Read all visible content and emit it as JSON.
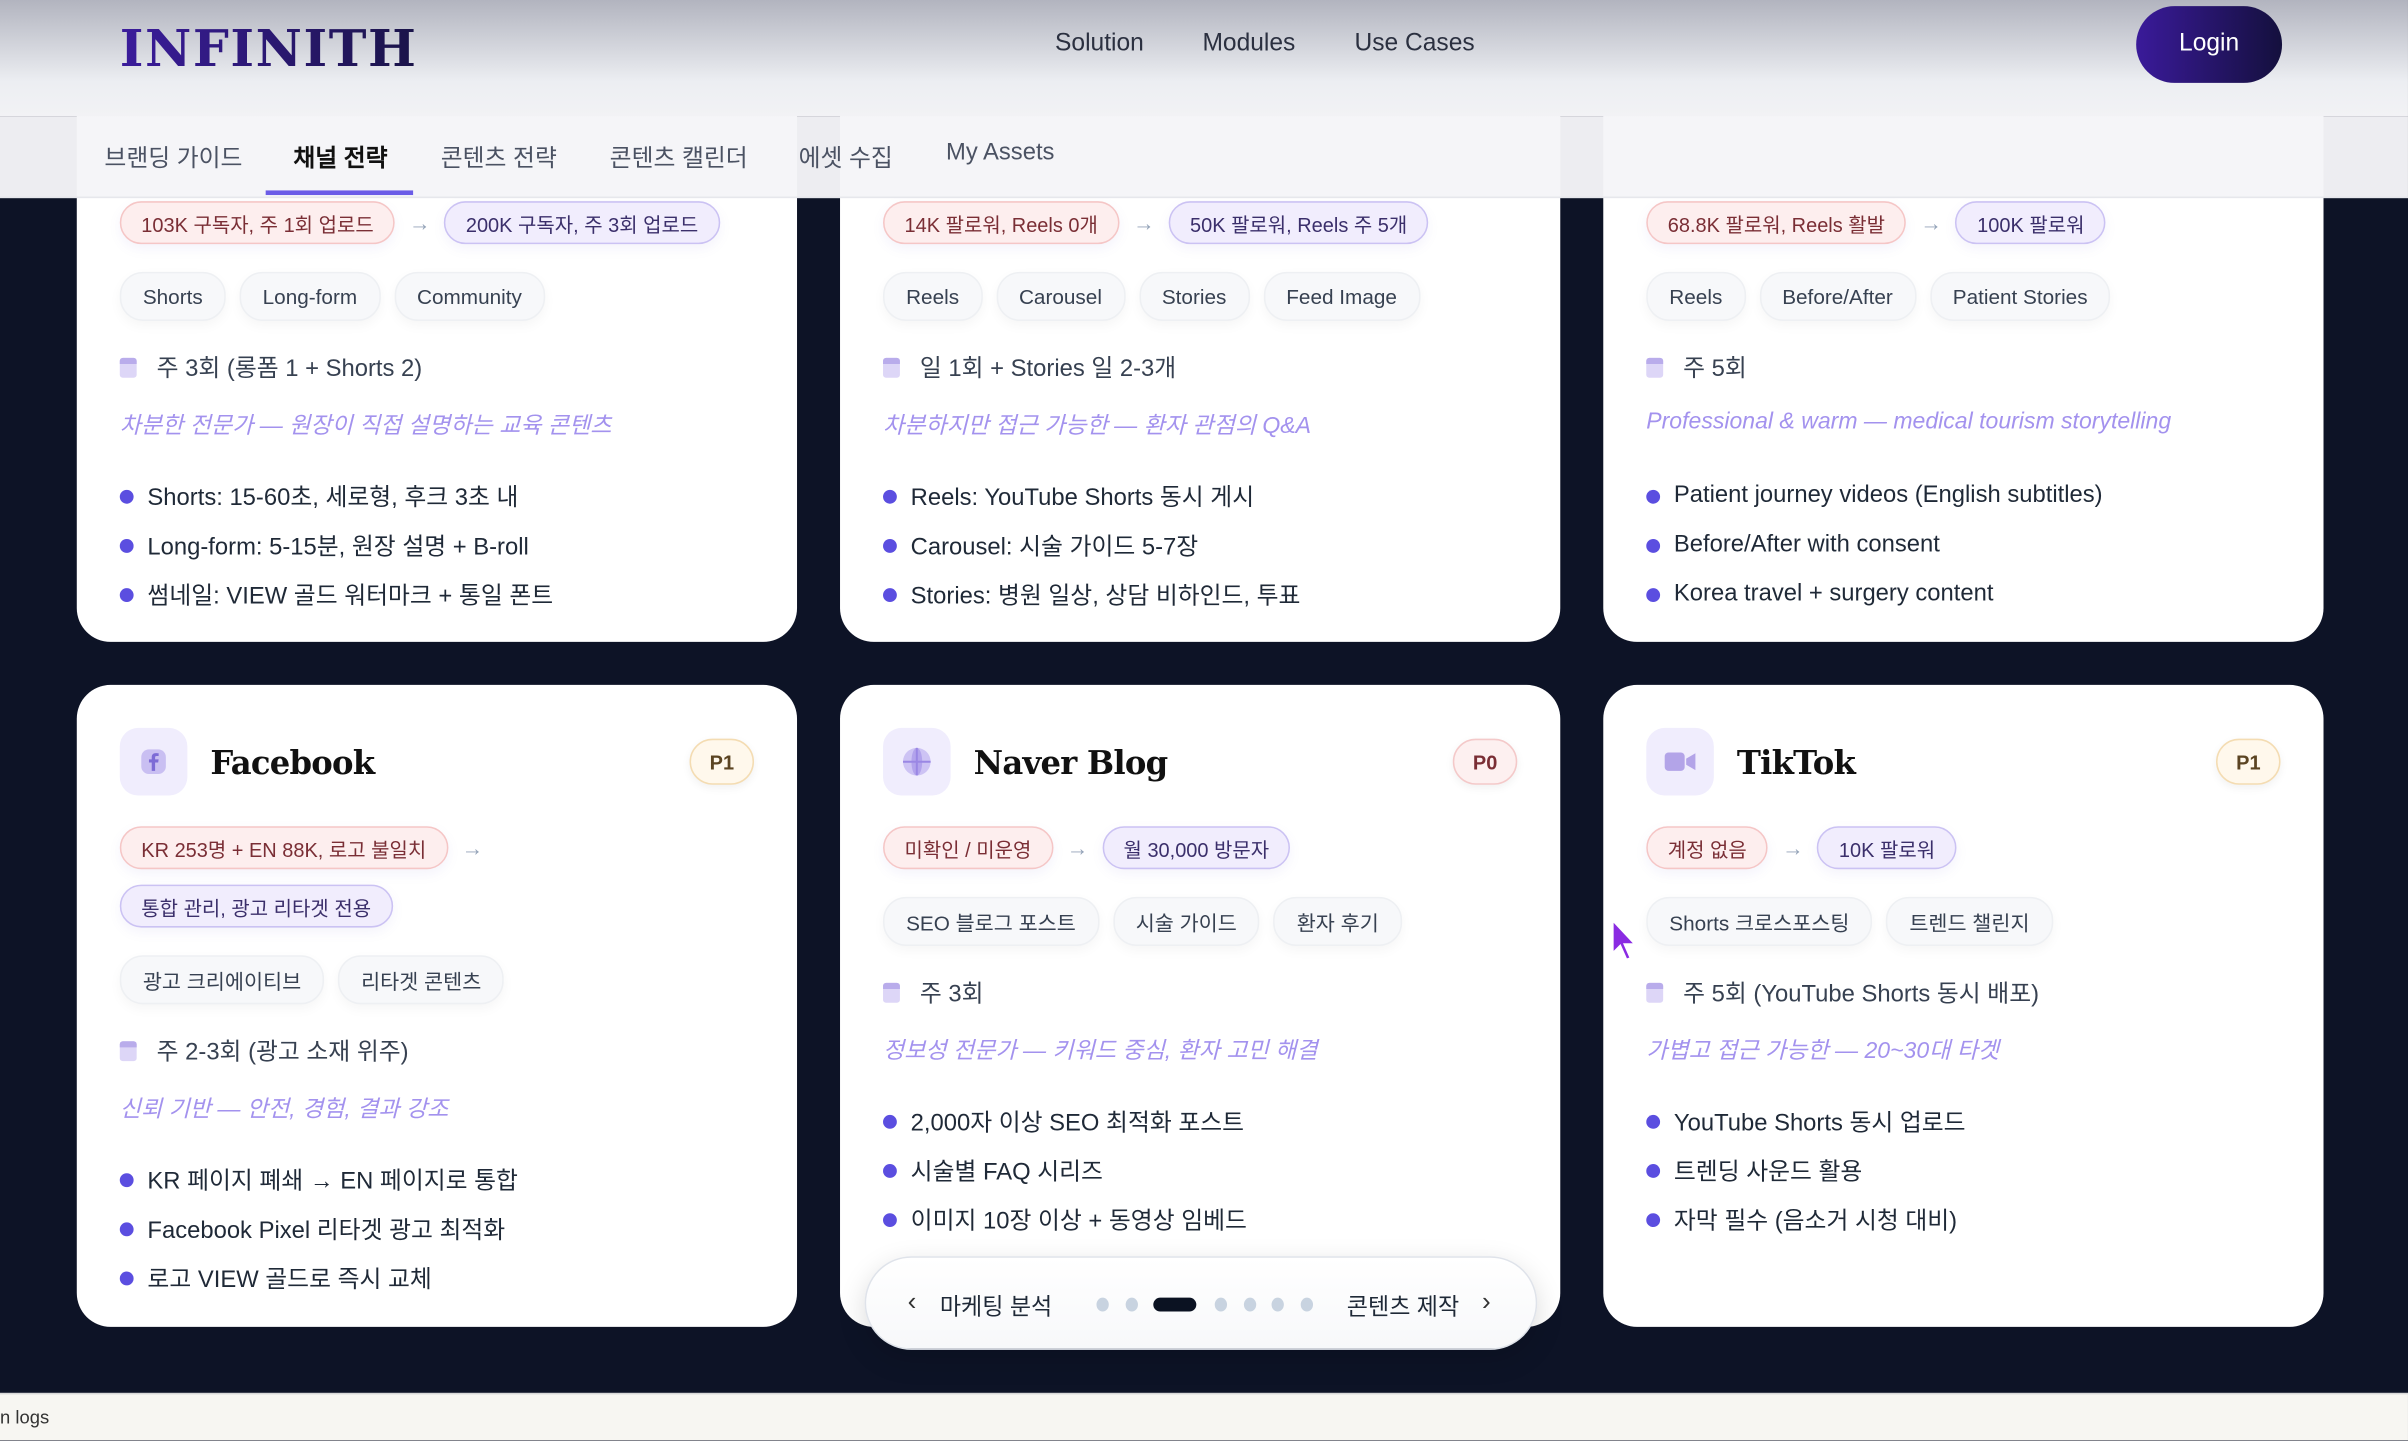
{
  "header": {
    "logo": "INFINITH",
    "nav": [
      "Solution",
      "Modules",
      "Use Cases"
    ],
    "login_label": "Login"
  },
  "tabs": [
    {
      "label": "브랜딩 가이드",
      "active": false
    },
    {
      "label": "채널 전략",
      "active": true
    },
    {
      "label": "콘텐츠 전략",
      "active": false
    },
    {
      "label": "콘텐츠 캘린더",
      "active": false
    },
    {
      "label": "에셋 수집",
      "active": false
    },
    {
      "label": "My Assets",
      "active": false
    }
  ],
  "colors": {
    "accent": "#6b5ce7",
    "background": "#0d1326",
    "bullet": "#5b4ee0",
    "tone_text": "#a392ee"
  },
  "cards_top": [
    {
      "current": "103K 구독자, 주 1회 업로드",
      "target": "200K 구독자, 주 3회 업로드",
      "tags": [
        "Shorts",
        "Long-form",
        "Community"
      ],
      "schedule": "주 3회 (롱폼 1 + Shorts 2)",
      "tone": "차분한 전문가 — 원장이 직접 설명하는 교육 콘텐츠",
      "bullets": [
        "Shorts: 15-60초, 세로형, 후크 3초 내",
        "Long-form: 5-15분, 원장 설명 + B-roll",
        "썸네일: VIEW 골드 워터마크 + 통일 폰트"
      ]
    },
    {
      "current": "14K 팔로워, Reels 0개",
      "target": "50K 팔로워, Reels 주 5개",
      "tags": [
        "Reels",
        "Carousel",
        "Stories",
        "Feed Image"
      ],
      "schedule": "일 1회 + Stories 일 2-3개",
      "tone": "차분하지만 접근 가능한 — 환자 관점의 Q&A",
      "bullets": [
        "Reels: YouTube Shorts 동시 게시",
        "Carousel: 시술 가이드 5-7장",
        "Stories: 병원 일상, 상담 비하인드, 투표"
      ]
    },
    {
      "current": "68.8K 팔로워, Reels 활발",
      "target": "100K 팔로워",
      "tags": [
        "Reels",
        "Before/After",
        "Patient Stories"
      ],
      "schedule": "주 5회",
      "tone": "Professional & warm — medical tourism storytelling",
      "bullets": [
        "Patient journey videos (English subtitles)",
        "Before/After with consent",
        "Korea travel + surgery content"
      ]
    }
  ],
  "cards_bottom": [
    {
      "icon": "facebook-icon",
      "title": "Facebook",
      "priority": "P1",
      "current": "KR 253명 + EN 88K, 로고 불일치",
      "target": "통합 관리, 광고 리타겟 전용",
      "tags": [
        "광고 크리에이티브",
        "리타겟 콘텐츠"
      ],
      "schedule": "주 2-3회 (광고 소재 위주)",
      "tone": "신뢰 기반 — 안전, 경험, 결과 강조",
      "bullets": [
        "KR 페이지 폐쇄 → EN 페이지로 통합",
        "Facebook Pixel 리타겟 광고 최적화",
        "로고 VIEW 골드로 즉시 교체"
      ]
    },
    {
      "icon": "globe-icon",
      "title": "Naver Blog",
      "priority": "P0",
      "current": "미확인 / 미운영",
      "target": "월 30,000 방문자",
      "tags": [
        "SEO 블로그 포스트",
        "시술 가이드",
        "환자 후기"
      ],
      "schedule": "주 3회",
      "tone": "정보성 전문가 — 키워드 중심, 환자 고민 해결",
      "bullets": [
        "2,000자 이상 SEO 최적화 포스트",
        "시술별 FAQ 시리즈",
        "이미지 10장 이상 + 동영상 임베드"
      ]
    },
    {
      "icon": "video-camera-icon",
      "title": "TikTok",
      "priority": "P1",
      "current": "계정 없음",
      "target": "10K 팔로워",
      "tags": [
        "Shorts 크로스포스팅",
        "트렌드 챌린지"
      ],
      "schedule": "주 5회 (YouTube Shorts 동시 배포)",
      "tone": "가볍고 접근 가능한 — 20~30대 타겟",
      "bullets": [
        "YouTube Shorts 동시 업로드",
        "트렌딩 사운드 활용",
        "자막 필수 (음소거 시청 대비)"
      ]
    }
  ],
  "pager": {
    "prev_label": "마케팅 분석",
    "next_label": "콘텐츠 제작",
    "total_steps": 7,
    "current_step": 3
  },
  "footer": {
    "text": "n logs"
  }
}
